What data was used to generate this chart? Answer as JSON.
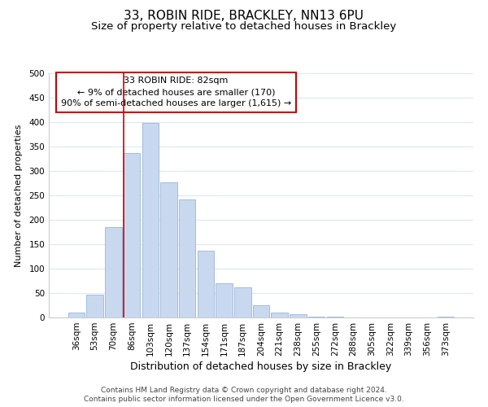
{
  "title": "33, ROBIN RIDE, BRACKLEY, NN13 6PU",
  "subtitle": "Size of property relative to detached houses in Brackley",
  "xlabel": "Distribution of detached houses by size in Brackley",
  "ylabel": "Number of detached properties",
  "bar_labels": [
    "36sqm",
    "53sqm",
    "70sqm",
    "86sqm",
    "103sqm",
    "120sqm",
    "137sqm",
    "154sqm",
    "171sqm",
    "187sqm",
    "204sqm",
    "221sqm",
    "238sqm",
    "255sqm",
    "272sqm",
    "288sqm",
    "305sqm",
    "322sqm",
    "339sqm",
    "356sqm",
    "373sqm"
  ],
  "bar_values": [
    10,
    47,
    185,
    337,
    398,
    277,
    242,
    137,
    70,
    62,
    25,
    10,
    6,
    2,
    1,
    0,
    0,
    0,
    0,
    0,
    2
  ],
  "bar_color": "#c8d9ef",
  "bar_edge_color": "#9ab5d8",
  "vline_color": "#cc0000",
  "vline_index": 3,
  "ylim": [
    0,
    500
  ],
  "yticks": [
    0,
    50,
    100,
    150,
    200,
    250,
    300,
    350,
    400,
    450,
    500
  ],
  "annotation_title": "33 ROBIN RIDE: 82sqm",
  "annotation_line1": "← 9% of detached houses are smaller (170)",
  "annotation_line2": "90% of semi-detached houses are larger (1,615) →",
  "annotation_box_color": "#ffffff",
  "annotation_box_edge": "#cc0000",
  "footer_line1": "Contains HM Land Registry data © Crown copyright and database right 2024.",
  "footer_line2": "Contains public sector information licensed under the Open Government Licence v3.0.",
  "title_fontsize": 11,
  "subtitle_fontsize": 9.5,
  "xlabel_fontsize": 9,
  "ylabel_fontsize": 8,
  "tick_fontsize": 7.5,
  "ann_fontsize": 8,
  "footer_fontsize": 6.5,
  "background_color": "#ffffff",
  "grid_color": "#dce8f5"
}
